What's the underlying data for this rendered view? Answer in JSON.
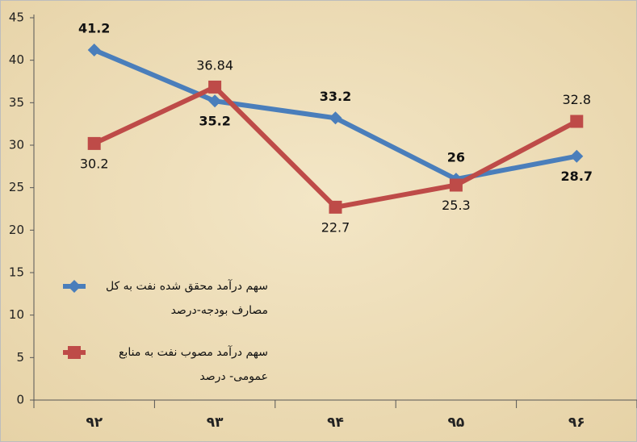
{
  "chart_data": {
    "type": "line",
    "categories": [
      "۹۲",
      "۹۳",
      "۹۴",
      "۹۵",
      "۹۶"
    ],
    "series": [
      {
        "name": "سهم درآمد محقق شده نفت به کل مصارف بودجه-درصد",
        "color": "#4a7ebb",
        "marker": "diamond",
        "values": [
          41.2,
          35.2,
          33.2,
          26,
          28.7
        ]
      },
      {
        "name": "سهم درآمد مصوب نفت به منابع عمومی- درصد",
        "color": "#be4b48",
        "marker": "square",
        "values": [
          30.2,
          36.84,
          22.7,
          25.3,
          32.8
        ]
      }
    ],
    "ylim": [
      0,
      45
    ],
    "yticks": [
      0,
      5,
      10,
      15,
      20,
      25,
      30,
      35,
      40,
      45
    ],
    "grid": false
  }
}
